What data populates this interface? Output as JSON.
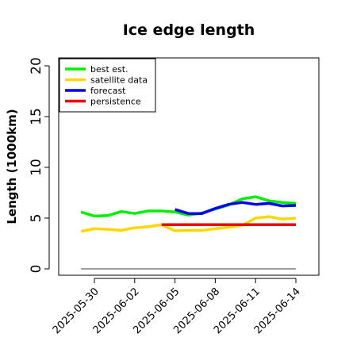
{
  "chart_data": {
    "type": "line",
    "title": "Ice edge length",
    "ylabel": "Length (1000km)",
    "xlabel": "",
    "ylim": [
      0,
      20
    ],
    "yticks": [
      0,
      5,
      10,
      15,
      20
    ],
    "xlim": [
      "2025-05-28",
      "2025-06-15"
    ],
    "xticks": [
      "2025-05-30",
      "2025-06-02",
      "2025-06-05",
      "2025-06-08",
      "2025-06-11",
      "2025-06-14"
    ],
    "highlighted_xtick": "2025-06-05",
    "highlight_color": "#228b22",
    "legend_position": "top-left",
    "grid": false,
    "baseline": {
      "y": 0,
      "x_start": "2025-05-29",
      "x_end": "2025-06-14",
      "color": "#808080"
    },
    "series": [
      {
        "name": "best est.",
        "color": "#00ee00",
        "x": [
          "2025-05-29",
          "2025-05-30",
          "2025-05-31",
          "2025-06-01",
          "2025-06-02",
          "2025-06-03",
          "2025-06-04",
          "2025-06-05",
          "2025-06-06",
          "2025-06-07",
          "2025-06-08",
          "2025-06-09",
          "2025-06-10",
          "2025-06-11",
          "2025-06-12",
          "2025-06-13",
          "2025-06-14"
        ],
        "values": [
          5.6,
          5.2,
          5.25,
          5.65,
          5.45,
          5.7,
          5.7,
          5.6,
          5.3,
          5.5,
          5.9,
          6.3,
          6.9,
          7.1,
          6.7,
          6.55,
          6.45
        ]
      },
      {
        "name": "satellite data",
        "color": "#ffd700",
        "x": [
          "2025-05-29",
          "2025-05-30",
          "2025-05-31",
          "2025-06-01",
          "2025-06-02",
          "2025-06-03",
          "2025-06-04",
          "2025-06-05",
          "2025-06-06",
          "2025-06-07",
          "2025-06-08",
          "2025-06-09",
          "2025-06-10",
          "2025-06-11",
          "2025-06-12",
          "2025-06-13",
          "2025-06-14"
        ],
        "values": [
          3.7,
          3.95,
          3.9,
          3.8,
          4.05,
          4.15,
          4.35,
          3.75,
          3.8,
          3.8,
          3.95,
          4.1,
          4.3,
          5.0,
          5.15,
          4.9,
          5.0
        ]
      },
      {
        "name": "forecast",
        "color": "#0000ee",
        "x": [
          "2025-06-05",
          "2025-06-06",
          "2025-06-07",
          "2025-06-08",
          "2025-06-09",
          "2025-06-10",
          "2025-06-11",
          "2025-06-12",
          "2025-06-13",
          "2025-06-14"
        ],
        "values": [
          5.85,
          5.45,
          5.45,
          5.95,
          6.35,
          6.55,
          6.35,
          6.45,
          6.2,
          6.25
        ]
      },
      {
        "name": "persistence",
        "color": "#ee0000",
        "x": [
          "2025-06-04",
          "2025-06-14"
        ],
        "values": [
          4.35,
          4.35
        ]
      }
    ]
  }
}
